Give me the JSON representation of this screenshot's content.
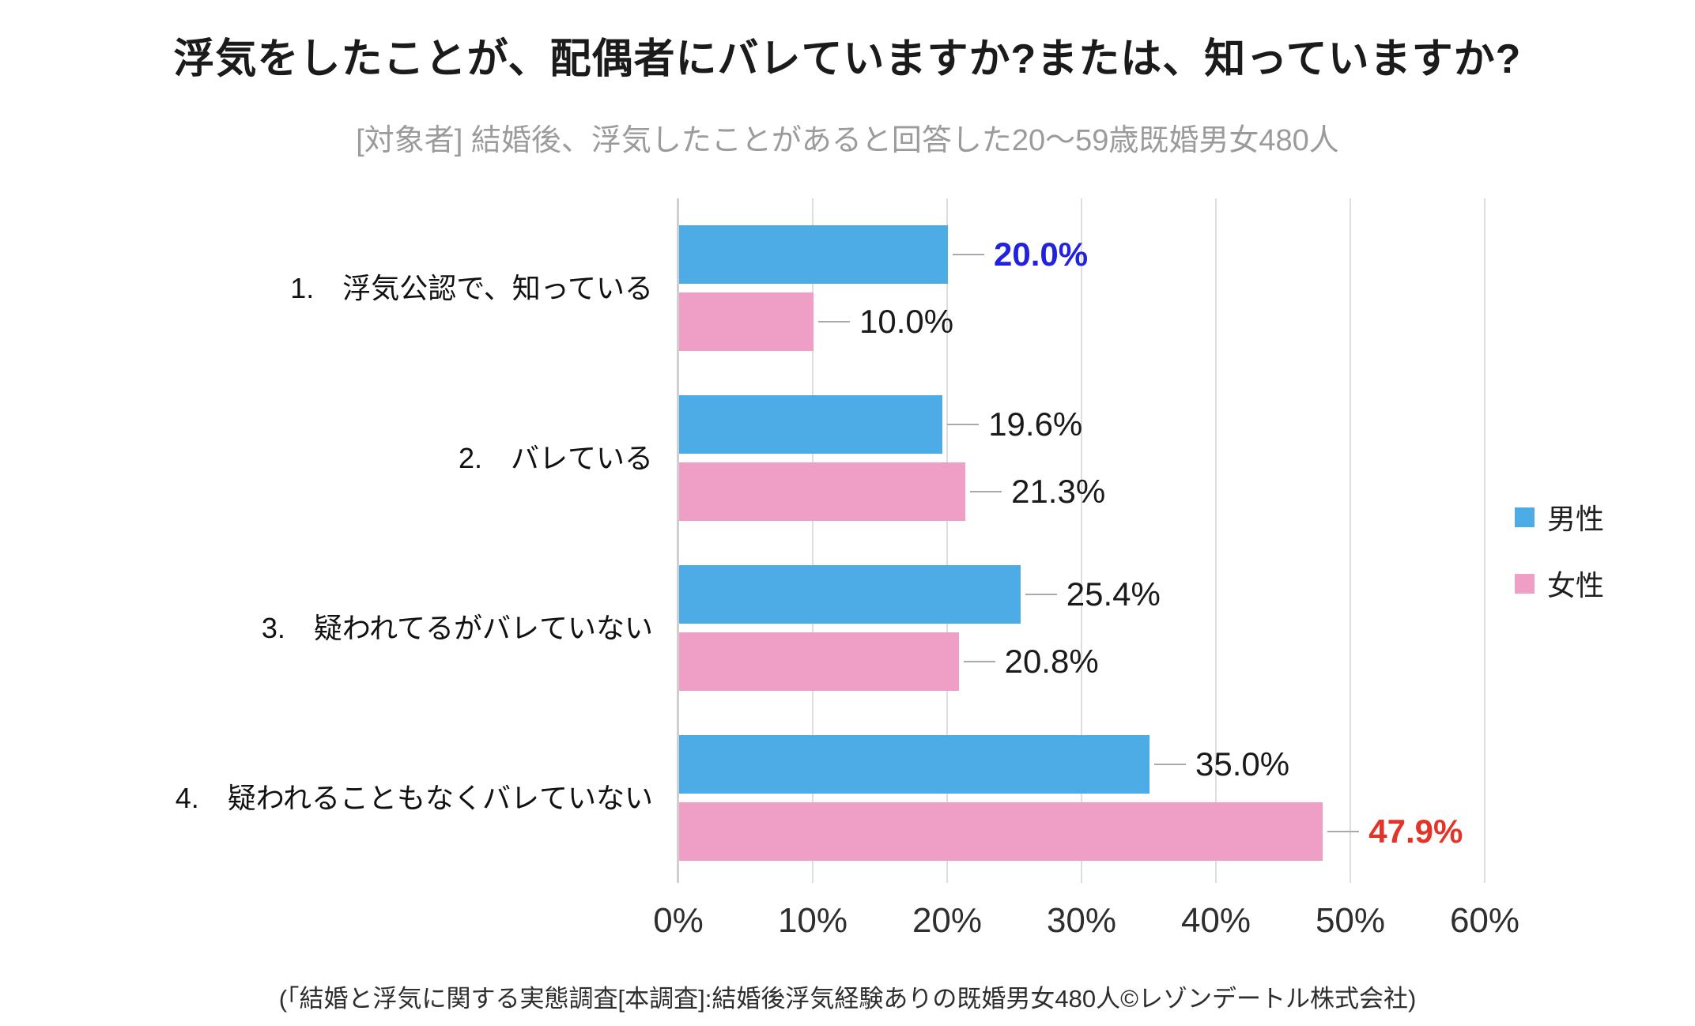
{
  "title": "浮気をしたことが、配偶者にバレていますか?または、知っていますか?",
  "subtitle": "[対象者] 結婚後、浮気したことがあると回答した20〜59歳既婚男女480人",
  "source": "(「結婚と浮気に関する実態調査[本調査]:結婚後浮気経験ありの既婚男女480人©レゾンデートル株式会社)",
  "colors": {
    "male_bar": "#4dace5",
    "female_bar": "#ef9fc6",
    "highlight_blue": "#2121df",
    "highlight_red": "#e23429",
    "label_default": "#1a1a1a",
    "gridline": "#dedede",
    "axis_line": "#cfcfcf",
    "leader_line": "#a9a9a9",
    "subtitle_text": "#9b9b9b"
  },
  "legend": [
    {
      "key": "male",
      "label": "男性",
      "color": "#4dace5"
    },
    {
      "key": "female",
      "label": "女性",
      "color": "#ef9fc6"
    }
  ],
  "chart_data": {
    "type": "bar",
    "orientation": "horizontal",
    "title": "浮気をしたことが、配偶者にバレていますか?または、知っていますか?",
    "subtitle": "[対象者] 結婚後、浮気したことがあると回答した20〜59歳既婚男女480人",
    "categories": [
      "1.　浮気公認で、知っている",
      "2.　バレている",
      "3.　疑われてるがバレていない",
      "4.　疑われることもなくバレていない"
    ],
    "series": [
      {
        "key": "male",
        "name": "男性",
        "color": "#4dace5",
        "values": [
          20.0,
          19.6,
          25.4,
          35.0
        ],
        "labels": [
          "20.0%",
          "19.6%",
          "25.4%",
          "35.0%"
        ],
        "label_colors": [
          "#2121df",
          "#1a1a1a",
          "#1a1a1a",
          "#1a1a1a"
        ],
        "label_bold": [
          true,
          false,
          false,
          false
        ]
      },
      {
        "key": "female",
        "name": "女性",
        "color": "#ef9fc6",
        "values": [
          10.0,
          21.3,
          20.8,
          47.9
        ],
        "labels": [
          "10.0%",
          "21.3%",
          "20.8%",
          "47.9%"
        ],
        "label_colors": [
          "#1a1a1a",
          "#1a1a1a",
          "#1a1a1a",
          "#e23429"
        ],
        "label_bold": [
          false,
          false,
          false,
          true
        ]
      }
    ],
    "x_ticks": [
      "0%",
      "10%",
      "20%",
      "30%",
      "40%",
      "50%",
      "60%"
    ],
    "x_max": 60,
    "xlim": [
      0,
      60
    ],
    "grid": true,
    "legend_position": "right",
    "xlabel": "",
    "ylabel": ""
  }
}
